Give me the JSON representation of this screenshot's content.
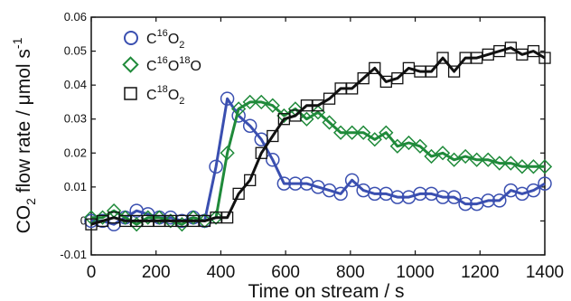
{
  "chart_data": {
    "type": "line",
    "xlabel": "Time on stream / s",
    "ylabel": "CO2 flow rate / μmol s-1",
    "xlim": [
      0,
      1400
    ],
    "ylim": [
      -0.01,
      0.06
    ],
    "xticks": [
      "0",
      "200",
      "400",
      "600",
      "800",
      "1000",
      "1200",
      "1400"
    ],
    "yticks": [
      "-0.01",
      "0",
      "0.01",
      "0.02",
      "0.03",
      "0.04",
      "0.05",
      "0.06"
    ],
    "legend_position": "top-left",
    "series": [
      {
        "name": "C16O2",
        "color": "#3a4fb0",
        "marker": "circle",
        "x": [
          0,
          35,
          70,
          105,
          140,
          175,
          210,
          245,
          280,
          315,
          350,
          385,
          420,
          455,
          490,
          525,
          560,
          595,
          630,
          665,
          700,
          735,
          770,
          805,
          840,
          875,
          910,
          945,
          980,
          1015,
          1050,
          1085,
          1120,
          1155,
          1190,
          1225,
          1260,
          1295,
          1330,
          1365,
          1400
        ],
        "values": [
          0.0,
          0.0,
          -0.001,
          0.001,
          0.003,
          0.002,
          0.001,
          0.001,
          0.0,
          0.001,
          0.0,
          0.016,
          0.036,
          0.031,
          0.028,
          0.024,
          0.018,
          0.011,
          0.011,
          0.011,
          0.01,
          0.009,
          0.008,
          0.012,
          0.009,
          0.008,
          0.008,
          0.007,
          0.007,
          0.008,
          0.008,
          0.007,
          0.007,
          0.005,
          0.005,
          0.006,
          0.006,
          0.009,
          0.008,
          0.009,
          0.011
        ]
      },
      {
        "name": "C16O18O",
        "color": "#1f8a3a",
        "marker": "diamond",
        "x": [
          0,
          35,
          70,
          105,
          140,
          175,
          210,
          245,
          280,
          315,
          350,
          385,
          420,
          455,
          490,
          525,
          560,
          595,
          630,
          665,
          700,
          735,
          770,
          805,
          840,
          875,
          910,
          945,
          980,
          1015,
          1050,
          1085,
          1120,
          1155,
          1190,
          1225,
          1260,
          1295,
          1330,
          1365,
          1400
        ],
        "values": [
          0.001,
          0.001,
          0.003,
          0.001,
          -0.001,
          0.001,
          0.001,
          0.0,
          -0.001,
          0.001,
          0.0,
          0.001,
          0.02,
          0.033,
          0.035,
          0.035,
          0.034,
          0.031,
          0.033,
          0.03,
          0.032,
          0.029,
          0.026,
          0.026,
          0.026,
          0.024,
          0.026,
          0.022,
          0.023,
          0.022,
          0.019,
          0.02,
          0.018,
          0.019,
          0.018,
          0.018,
          0.017,
          0.017,
          0.016,
          0.016,
          0.016
        ]
      },
      {
        "name": "C18O2",
        "color": "#111111",
        "marker": "square",
        "x": [
          0,
          35,
          70,
          105,
          140,
          175,
          210,
          245,
          280,
          315,
          350,
          385,
          420,
          455,
          490,
          525,
          560,
          595,
          630,
          665,
          700,
          735,
          770,
          805,
          840,
          875,
          910,
          945,
          980,
          1015,
          1050,
          1085,
          1120,
          1155,
          1190,
          1225,
          1260,
          1295,
          1330,
          1365,
          1400
        ],
        "values": [
          -0.001,
          0.0,
          0.001,
          0.0,
          0.0,
          0.0,
          0.0,
          0.0,
          0.0,
          0.0,
          0.0,
          0.001,
          0.001,
          0.008,
          0.012,
          0.02,
          0.025,
          0.03,
          0.031,
          0.034,
          0.034,
          0.036,
          0.039,
          0.039,
          0.042,
          0.045,
          0.041,
          0.042,
          0.045,
          0.044,
          0.044,
          0.048,
          0.044,
          0.048,
          0.048,
          0.049,
          0.05,
          0.051,
          0.049,
          0.05,
          0.048
        ]
      }
    ]
  },
  "legend": [
    {
      "prefix": "C",
      "sup1": "16",
      "mid": "O",
      "sub1": "2",
      "sup2": "",
      "tail": ""
    },
    {
      "prefix": "C",
      "sup1": "16",
      "mid": "O",
      "sub1": "",
      "sup2": "18",
      "tail": "O"
    },
    {
      "prefix": "C",
      "sup1": "18",
      "mid": "O",
      "sub1": "2",
      "sup2": "",
      "tail": ""
    }
  ],
  "ylabel_parts": {
    "a": "CO",
    "sub": "2",
    "b": " flow rate / μmol s",
    "sup": "-1"
  }
}
